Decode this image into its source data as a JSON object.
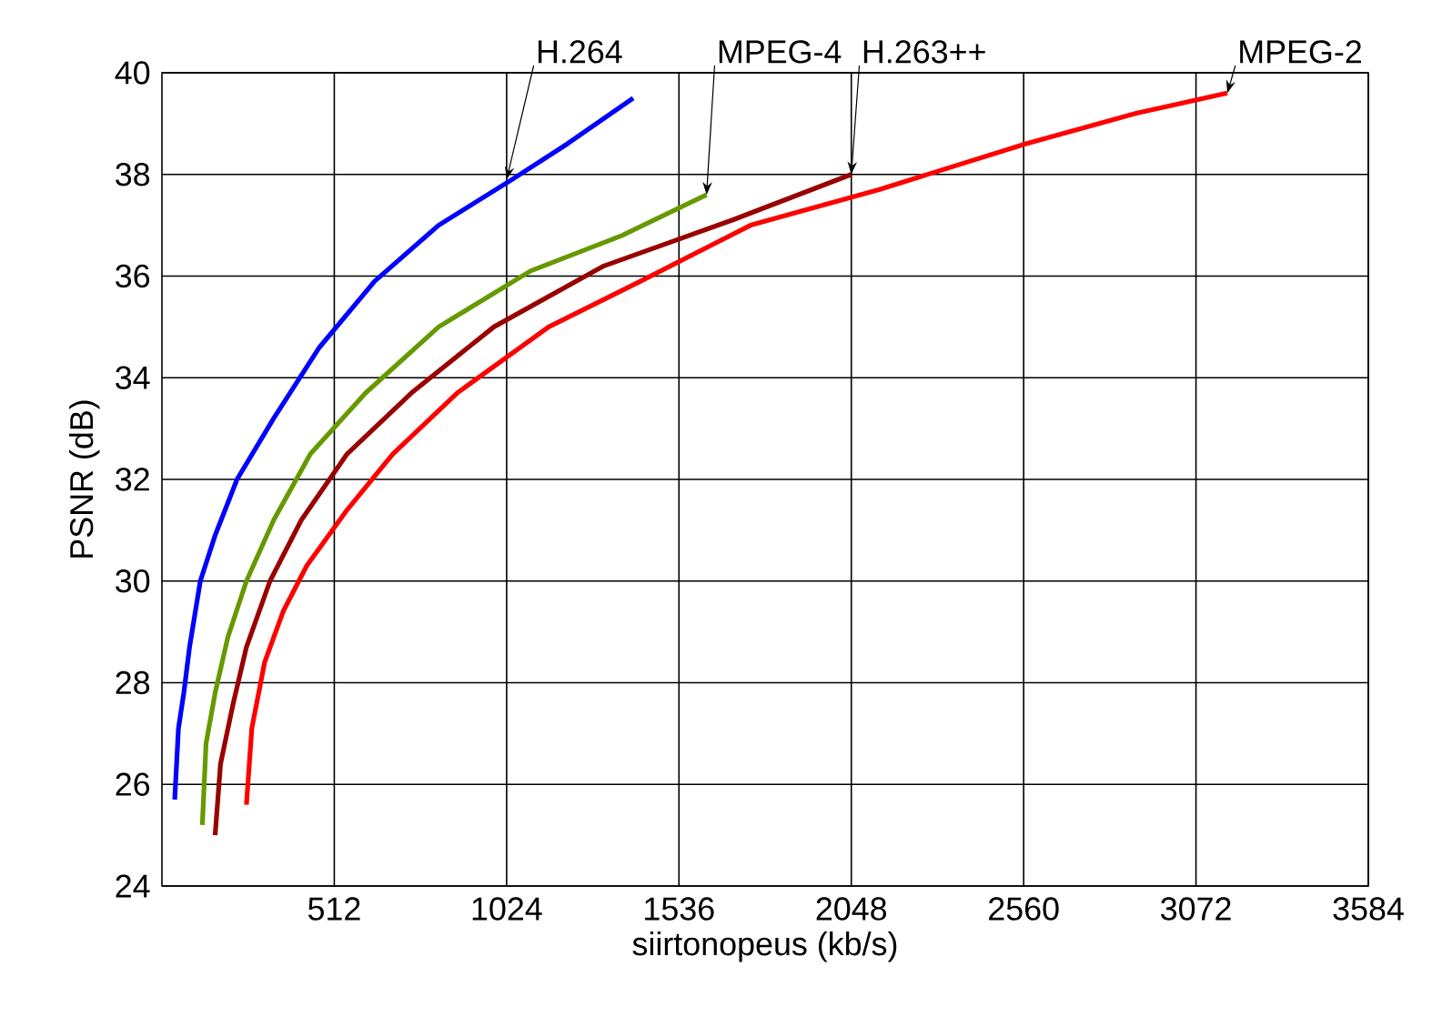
{
  "chart_data": {
    "type": "line",
    "xlabel": "siirtonopeus (kb/s)",
    "ylabel": "PSNR (dB)",
    "xlim": [
      0,
      3584
    ],
    "ylim": [
      24,
      40
    ],
    "xticks": [
      512,
      1024,
      1536,
      2048,
      2560,
      3072,
      3584
    ],
    "yticks": [
      24,
      26,
      28,
      30,
      32,
      34,
      36,
      38,
      40
    ],
    "grid": true,
    "marker": "none",
    "line_style": "solid",
    "annotations": [
      {
        "text": "H.264",
        "x": 1024,
        "y": 37.9
      },
      {
        "text": "MPEG-4",
        "x": 1618,
        "y": 37.6
      },
      {
        "text": "H.263++",
        "x": 2048,
        "y": 38.0
      },
      {
        "text": "MPEG-2",
        "x": 3165,
        "y": 39.6
      }
    ],
    "series": [
      {
        "color": "#0000ff",
        "x": [
          38,
          49,
          65,
          82,
          114,
          158,
          223,
          332,
          468,
          632,
          822,
          1040,
          1204,
          1400
        ],
        "values": [
          25.7,
          27.1,
          27.8,
          28.7,
          30.0,
          30.9,
          32.0,
          33.2,
          34.6,
          35.9,
          37.0,
          37.9,
          38.6,
          39.5
        ]
      },
      {
        "color": "#669900",
        "x": [
          120,
          131,
          158,
          196,
          251,
          332,
          441,
          605,
          822,
          1095,
          1367,
          1618
        ],
        "values": [
          25.2,
          26.8,
          27.8,
          28.9,
          30.0,
          31.2,
          32.5,
          33.7,
          35.0,
          36.1,
          36.8,
          37.6
        ]
      },
      {
        "color": "#990000",
        "x": [
          158,
          174,
          212,
          251,
          321,
          414,
          550,
          741,
          986,
          1313,
          1694,
          2048
        ],
        "values": [
          25.0,
          26.4,
          27.6,
          28.7,
          30.0,
          31.2,
          32.5,
          33.7,
          35.0,
          36.2,
          37.1,
          38.0
        ]
      },
      {
        "color": "#ff0000",
        "x": [
          251,
          267,
          305,
          360,
          430,
          550,
          686,
          877,
          1149,
          1422,
          1749,
          2130,
          2565,
          2892,
          3165
        ],
        "values": [
          25.6,
          27.1,
          28.4,
          29.4,
          30.3,
          31.4,
          32.5,
          33.7,
          35.0,
          35.9,
          37.0,
          37.7,
          38.6,
          39.2,
          39.6
        ]
      }
    ]
  }
}
